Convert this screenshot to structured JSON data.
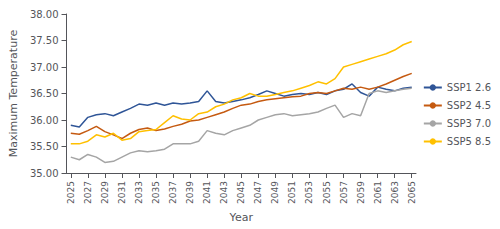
{
  "chart_data": {
    "type": "line",
    "xlabel": "Year",
    "ylabel": "Maximum Temperature",
    "x": [
      2025,
      2026,
      2027,
      2028,
      2029,
      2030,
      2031,
      2032,
      2033,
      2034,
      2035,
      2036,
      2037,
      2038,
      2039,
      2040,
      2041,
      2042,
      2043,
      2044,
      2045,
      2046,
      2047,
      2048,
      2049,
      2050,
      2051,
      2052,
      2053,
      2054,
      2055,
      2056,
      2057,
      2058,
      2059,
      2060,
      2061,
      2062,
      2063,
      2064,
      2065
    ],
    "series": [
      {
        "name": "SSP1 2.6",
        "color": "#2f5597",
        "values": [
          35.9,
          35.87,
          36.05,
          36.1,
          36.12,
          36.08,
          36.15,
          36.22,
          36.3,
          36.28,
          36.32,
          36.28,
          36.32,
          36.3,
          36.32,
          36.35,
          36.55,
          36.35,
          36.32,
          36.35,
          36.38,
          36.42,
          36.48,
          36.55,
          36.5,
          36.45,
          36.48,
          36.5,
          36.48,
          36.52,
          36.48,
          36.55,
          36.58,
          36.68,
          36.52,
          36.45,
          36.62,
          36.58,
          36.55,
          36.6,
          36.62
        ]
      },
      {
        "name": "SSP2 4.5",
        "color": "#c55a11",
        "values": [
          35.75,
          35.73,
          35.8,
          35.88,
          35.78,
          35.72,
          35.65,
          35.75,
          35.82,
          35.85,
          35.8,
          35.83,
          35.88,
          35.92,
          35.98,
          36.0,
          36.05,
          36.1,
          36.15,
          36.22,
          36.28,
          36.3,
          36.35,
          36.38,
          36.4,
          36.42,
          36.44,
          36.45,
          36.5,
          36.52,
          36.5,
          36.55,
          36.6,
          36.58,
          36.62,
          36.58,
          36.62,
          36.68,
          36.75,
          36.82,
          36.88
        ]
      },
      {
        "name": "SSP3 7.0",
        "color": "#a5a5a5",
        "values": [
          35.3,
          35.25,
          35.35,
          35.3,
          35.2,
          35.22,
          35.3,
          35.38,
          35.42,
          35.4,
          35.42,
          35.45,
          35.55,
          35.55,
          35.55,
          35.6,
          35.8,
          35.75,
          35.72,
          35.8,
          35.85,
          35.9,
          36.0,
          36.05,
          36.1,
          36.12,
          36.08,
          36.1,
          36.12,
          36.15,
          36.22,
          36.28,
          36.05,
          36.12,
          36.08,
          36.5,
          36.55,
          36.52,
          36.55,
          36.58,
          36.6
        ]
      },
      {
        "name": "SSP5 8.5",
        "color": "#ffc000",
        "values": [
          35.55,
          35.55,
          35.6,
          35.72,
          35.68,
          35.75,
          35.62,
          35.65,
          35.78,
          35.8,
          35.82,
          35.95,
          36.08,
          36.02,
          36.0,
          36.12,
          36.15,
          36.25,
          36.3,
          36.38,
          36.42,
          36.5,
          36.45,
          36.45,
          36.48,
          36.52,
          36.55,
          36.6,
          36.65,
          36.72,
          36.68,
          36.78,
          37.0,
          37.05,
          37.1,
          37.15,
          37.2,
          37.25,
          37.32,
          37.42,
          37.48
        ]
      }
    ],
    "xlim": [
      2024.5,
      2065.5
    ],
    "xticks": [
      2025,
      2027,
      2029,
      2031,
      2033,
      2035,
      2037,
      2039,
      2041,
      2043,
      2045,
      2047,
      2049,
      2051,
      2053,
      2055,
      2057,
      2059,
      2061,
      2063,
      2065
    ],
    "ylim": [
      35.0,
      38.0
    ],
    "yticks": [
      {
        "value": 35.0,
        "label": "35.00"
      },
      {
        "value": 35.5,
        "label": "35.50"
      },
      {
        "value": 36.0,
        "label": "36.00"
      },
      {
        "value": 36.5,
        "label": "36.50"
      },
      {
        "value": 37.0,
        "label": "37.00"
      },
      {
        "value": 37.5,
        "label": "37.50"
      },
      {
        "value": 38.0,
        "label": "38.00"
      }
    ],
    "grid": false,
    "legend": "right"
  }
}
